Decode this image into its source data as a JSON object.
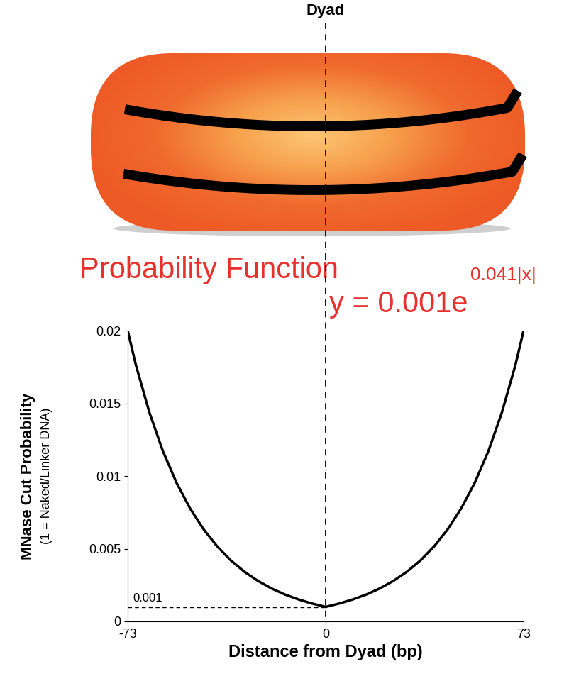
{
  "chart_data": {
    "type": "line",
    "diagram_label": "Dyad",
    "title": "Probability Function",
    "equation": {
      "base": "y = 0.001e",
      "exponent": "0.041|x|"
    },
    "ylabel": "MNase Cut Probability",
    "ylabel_note": "(1 = Naked/Linker DNA)",
    "xlabel": "Distance from Dyad (bp)",
    "x": [
      -73,
      -70,
      -65,
      -60,
      -55,
      -50,
      -45,
      -40,
      -35,
      -30,
      -25,
      -20,
      -15,
      -10,
      -5,
      0,
      5,
      10,
      15,
      20,
      25,
      30,
      35,
      40,
      45,
      50,
      55,
      60,
      65,
      70,
      73
    ],
    "values": [
      0.02,
      0.01764,
      0.01437,
      0.0117,
      0.00954,
      0.00777,
      0.00633,
      0.00516,
      0.0042,
      0.00342,
      0.00279,
      0.00227,
      0.00185,
      0.00151,
      0.00123,
      0.001,
      0.00123,
      0.00151,
      0.00185,
      0.00227,
      0.00279,
      0.00342,
      0.0042,
      0.00516,
      0.00633,
      0.00777,
      0.00954,
      0.0117,
      0.01437,
      0.01764,
      0.02
    ],
    "color": "#000000",
    "dyad_x": 0,
    "annotations": [
      {
        "y": 0.001,
        "text": "0.001"
      }
    ],
    "xlim": [
      -73,
      73
    ],
    "xticks": [
      -73,
      0,
      73
    ],
    "ylim": [
      0,
      0.02
    ],
    "yticks": [
      0,
      0.005,
      0.01,
      0.015,
      0.02
    ],
    "grid": false
  }
}
